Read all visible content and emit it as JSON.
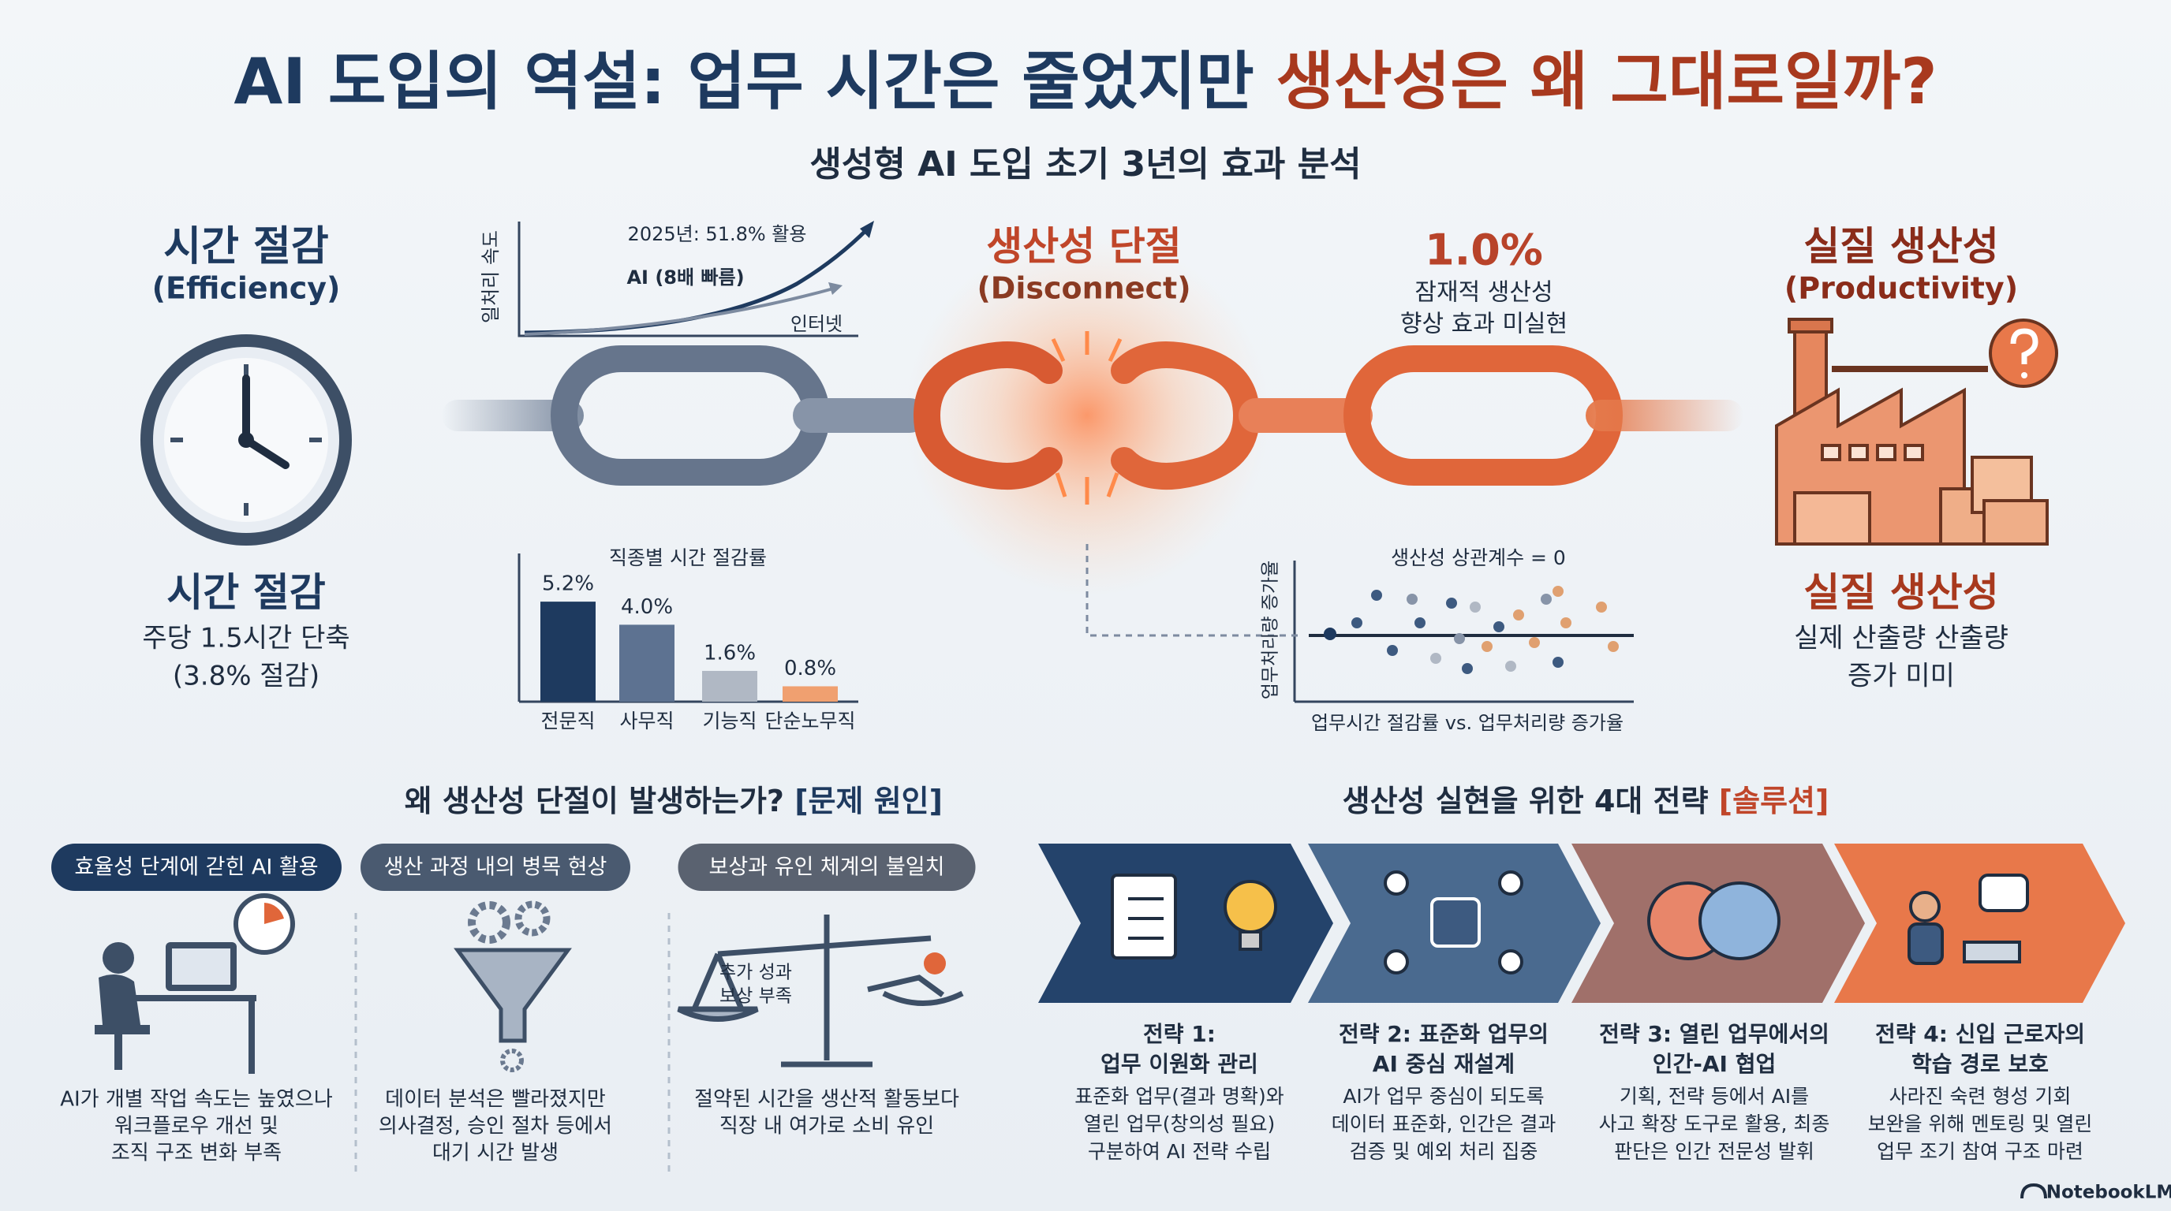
{
  "header": {
    "title": [
      "AI 도입의 역설: 업무 시간은 줄었지만 ",
      "생산성은 왜 그대로일까?"
    ],
    "subtitle": "생성형 AI 도입 초기 3년의 효과 분석"
  },
  "efficiency": {
    "title": "시간 절감",
    "subtitle": "(Efficiency)",
    "label": "시간 절감",
    "detail": [
      "주당 1.5시간 단축",
      "(3.8% 절감)"
    ]
  },
  "speed_chart": {
    "y_label": "일처리 속도",
    "annotation": "2025년: 51.8% 활용",
    "ai_label": "AI (8배 빠름)",
    "internet_label": "인터넷"
  },
  "disconnect": {
    "title": "생산성 단절",
    "subtitle": "(Disconnect)"
  },
  "potential": {
    "value": "1.0%",
    "text": [
      "잠재적 생산성",
      "향상 효과 미실현"
    ]
  },
  "productivity": {
    "title": "실질 생산성",
    "subtitle": "(Productivity)",
    "label": "실질 생산성",
    "detail": [
      "실제 산출량 산출량",
      "증가 미미"
    ]
  },
  "savings_chart": {
    "title": "직종별 시간 절감률",
    "categories": [
      "전문직",
      "사무직",
      "기능직",
      "단순노무직"
    ],
    "values": [
      5.2,
      4.0,
      1.6,
      0.8
    ],
    "value_labels": [
      "5.2%",
      "4.0%",
      "1.6%",
      "0.8%"
    ],
    "colors": [
      "#1e3a5f",
      "#5d7291",
      "#b0b8c4",
      "#f0a070"
    ]
  },
  "correlation_chart": {
    "title": "생산성 상관계수 = 0",
    "y_label": "업무처리량 증가율",
    "x_label": "업무시간 절감률 vs. 업무처리량 증가율"
  },
  "problems": {
    "heading": [
      "왜 생산성 단절이 발생하는가? ",
      "[문제 원인]"
    ],
    "items": [
      {
        "badge": "효율성 단계에 갇힌 AI 활용",
        "text": [
          "AI가 개별 작업 속도는 높였으나",
          "워크플로우 개선 및",
          "조직 구조 변화 부족"
        ]
      },
      {
        "badge": "생산 과정 내의 병목 현상",
        "text": [
          "데이터 분석은 빨라졌지만",
          "의사결정, 승인 절차 등에서",
          "대기 시간 발생"
        ]
      },
      {
        "badge": "보상과 유인 체계의 불일치",
        "text": [
          "절약된 시간을 생산적 활동보다",
          "직장 내 여가로 소비 유인"
        ]
      }
    ],
    "scale_label": [
      "추가 성과",
      "보상 부족"
    ]
  },
  "solutions": {
    "heading": [
      "생산성 실현을 위한 4대 전략 ",
      "[솔루션]"
    ],
    "items": [
      {
        "title": [
          "전략 1:",
          "업무 이원화 관리"
        ],
        "text": [
          "표준화 업무(결과 명확)와",
          "열린 업무(창의성 필요)",
          "구분하여 AI 전략 수립"
        ]
      },
      {
        "title": [
          "전략 2: 표준화 업무의",
          "AI 중심 재설계"
        ],
        "text": [
          "AI가 업무 중심이 되도록",
          "데이터 표준화, 인간은 결과",
          "검증 및 예외 처리 집중"
        ]
      },
      {
        "title": [
          "전략 3: 열린 업무에서의",
          "인간-AI 협업"
        ],
        "text": [
          "기획, 전략 등에서 AI를",
          "사고 확장 도구로 활용, 최종",
          "판단은 인간 전문성 발휘"
        ]
      },
      {
        "title": [
          "전략 4: 신입 근로자의",
          "학습 경로 보호"
        ],
        "text": [
          "사라진 숙련 형성 기회",
          "보완을 위해 멘토링 및 열린",
          "업무 조기 참여 구조 마련"
        ]
      }
    ]
  },
  "footer": "NotebookLM"
}
